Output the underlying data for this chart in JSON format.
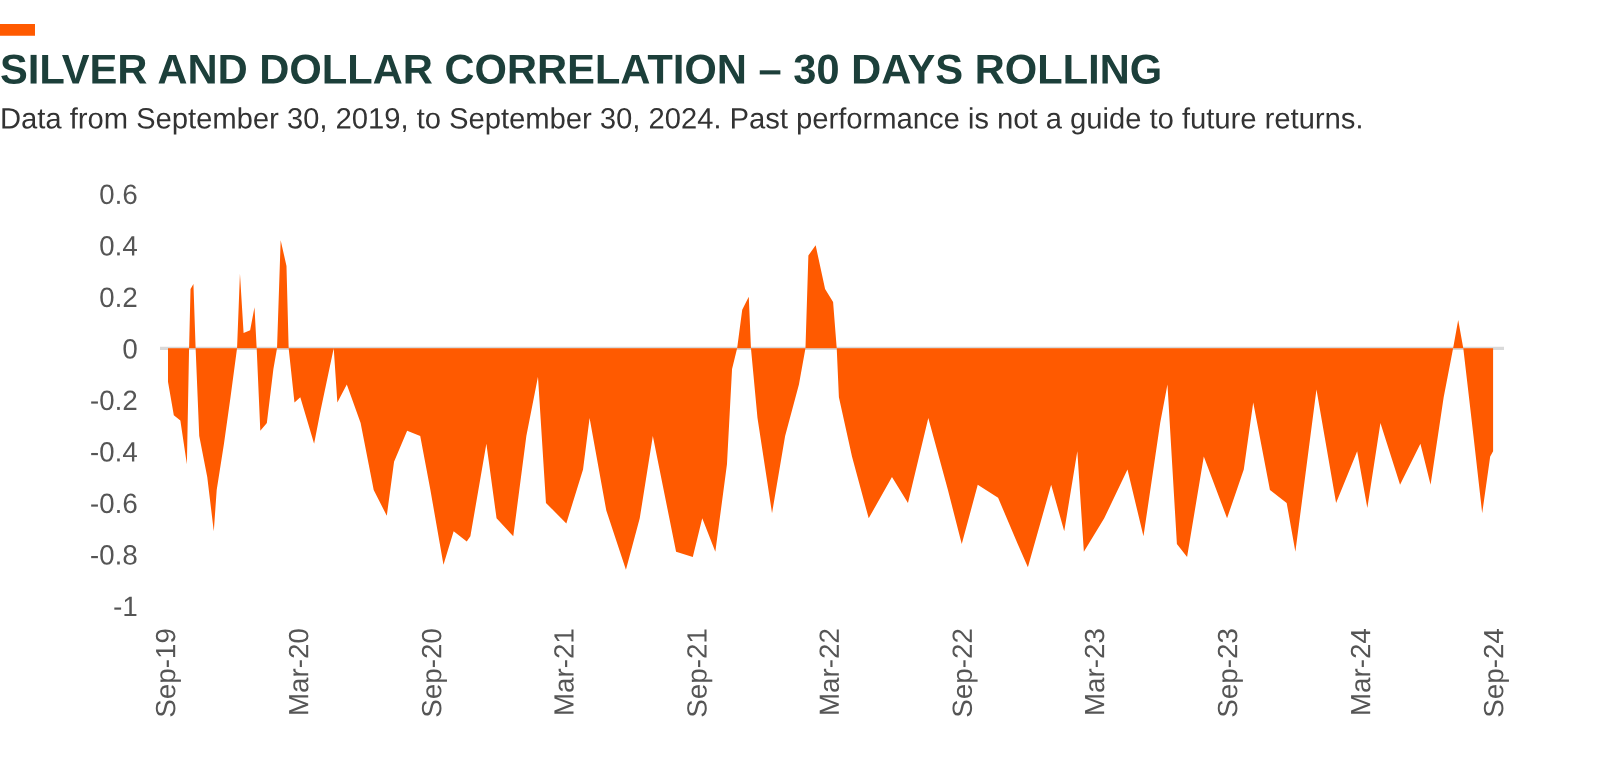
{
  "chart_data": {
    "type": "area",
    "title": "SILVER AND DOLLAR CORRELATION – 30 DAYS ROLLING",
    "annotations": [
      "Data from September 30, 2019, to September 30, 2024. Past performance is not a guide to future returns."
    ],
    "series": [
      {
        "color": "#ff5a00",
        "x": [
          "2019-09-30",
          "2019-10-08",
          "2019-10-17",
          "2019-10-26",
          "2019-10-29",
          "2019-10-31",
          "2019-11-04",
          "2019-11-07",
          "2019-11-12",
          "2019-11-23",
          "2019-12-02",
          "2019-12-06",
          "2019-12-16",
          "2019-12-25",
          "2020-01-03",
          "2020-01-07",
          "2020-01-12",
          "2020-01-21",
          "2020-01-27",
          "2020-01-30",
          "2020-02-04",
          "2020-02-13",
          "2020-02-22",
          "2020-02-27",
          "2020-03-03",
          "2020-03-11",
          "2020-03-14",
          "2020-03-22",
          "2020-03-30",
          "2020-04-18",
          "2020-04-27",
          "2020-05-15",
          "2020-05-20",
          "2020-06-02",
          "2020-06-21",
          "2020-07-09",
          "2020-07-27",
          "2020-08-06",
          "2020-08-24",
          "2020-09-11",
          "2020-09-25",
          "2020-10-13",
          "2020-10-27",
          "2020-11-14",
          "2020-11-19",
          "2020-12-11",
          "2020-12-25",
          "2021-01-17",
          "2021-02-04",
          "2021-02-20",
          "2021-03-03",
          "2021-03-31",
          "2021-04-23",
          "2021-05-02",
          "2021-05-25",
          "2021-06-21",
          "2021-07-10",
          "2021-07-28",
          "2021-08-29",
          "2021-09-21",
          "2021-10-04",
          "2021-10-22",
          "2021-11-07",
          "2021-11-14",
          "2021-11-21",
          "2021-11-28",
          "2021-12-07",
          "2021-12-10",
          "2021-12-19",
          "2022-01-08",
          "2022-01-26",
          "2022-02-14",
          "2022-02-23",
          "2022-02-27",
          "2022-03-09",
          "2022-03-22",
          "2022-04-02",
          "2022-04-07",
          "2022-04-10",
          "2022-04-28",
          "2022-05-21",
          "2022-06-22",
          "2022-07-14",
          "2022-08-11",
          "2022-09-07",
          "2022-09-26",
          "2022-10-18",
          "2022-11-15",
          "2022-12-12",
          "2022-12-26",
          "2023-01-27",
          "2023-02-14",
          "2023-03-04",
          "2023-03-13",
          "2023-04-10",
          "2023-05-12",
          "2023-06-03",
          "2023-06-26",
          "2023-07-06",
          "2023-07-19",
          "2023-08-02",
          "2023-08-25",
          "2023-09-26",
          "2023-10-19",
          "2023-11-01",
          "2023-11-24",
          "2023-12-17",
          "2023-12-29",
          "2024-01-27",
          "2024-02-23",
          "2024-03-23",
          "2024-04-06",
          "2024-04-24",
          "2024-05-21",
          "2024-06-18",
          "2024-07-02",
          "2024-07-20",
          "2024-08-02",
          "2024-08-09",
          "2024-08-16",
          "2024-08-30",
          "2024-09-11",
          "2024-09-22",
          "2024-09-26"
        ],
        "values": [
          -0.13,
          -0.26,
          -0.28,
          -0.45,
          0,
          0.23,
          0.25,
          0,
          -0.34,
          -0.5,
          -0.71,
          -0.55,
          -0.37,
          -0.19,
          0,
          0.29,
          0.06,
          0.07,
          0.16,
          0,
          -0.32,
          -0.29,
          -0.08,
          0,
          0.42,
          0.32,
          0,
          -0.21,
          -0.19,
          -0.37,
          -0.24,
          0,
          -0.21,
          -0.14,
          -0.29,
          -0.55,
          -0.65,
          -0.44,
          -0.32,
          -0.34,
          -0.55,
          -0.84,
          -0.71,
          -0.75,
          -0.73,
          -0.37,
          -0.66,
          -0.73,
          -0.34,
          -0.11,
          -0.6,
          -0.68,
          -0.47,
          -0.27,
          -0.63,
          -0.86,
          -0.66,
          -0.34,
          -0.79,
          -0.81,
          -0.66,
          -0.79,
          -0.45,
          -0.08,
          0,
          0.15,
          0.2,
          0,
          -0.27,
          -0.64,
          -0.34,
          -0.14,
          0,
          0.36,
          0.4,
          0.23,
          0.18,
          0,
          -0.19,
          -0.42,
          -0.66,
          -0.5,
          -0.6,
          -0.27,
          -0.55,
          -0.76,
          -0.53,
          -0.58,
          -0.76,
          -0.85,
          -0.53,
          -0.71,
          -0.4,
          -0.79,
          -0.66,
          -0.47,
          -0.73,
          -0.29,
          -0.14,
          -0.76,
          -0.81,
          -0.42,
          -0.66,
          -0.47,
          -0.21,
          -0.55,
          -0.6,
          -0.79,
          -0.16,
          -0.6,
          -0.4,
          -0.62,
          -0.29,
          -0.53,
          -0.37,
          -0.53,
          -0.19,
          0,
          0.11,
          0,
          -0.34,
          -0.64,
          -0.42,
          -0.4
        ]
      }
    ],
    "xlim": [
      "2019-09-19",
      "2024-10-11"
    ],
    "xticks": [
      {
        "value": "2019-09-30",
        "label": "Sep-19"
      },
      {
        "value": "2020-03-31",
        "label": "Mar-20"
      },
      {
        "value": "2020-09-30",
        "label": "Sep-20"
      },
      {
        "value": "2021-03-31",
        "label": "Mar-21"
      },
      {
        "value": "2021-09-30",
        "label": "Sep-21"
      },
      {
        "value": "2022-03-31",
        "label": "Mar-22"
      },
      {
        "value": "2022-09-30",
        "label": "Sep-22"
      },
      {
        "value": "2023-03-31",
        "label": "Mar-23"
      },
      {
        "value": "2023-09-30",
        "label": "Sep-23"
      },
      {
        "value": "2024-03-31",
        "label": "Mar-24"
      },
      {
        "value": "2024-09-30",
        "label": "Sep-24"
      }
    ],
    "ylim": [
      -1,
      0.6
    ],
    "yticks": [
      0.6,
      0.4,
      0.2,
      0,
      {
        "value": -0.2,
        "label": "-0.2"
      },
      {
        "value": -0.4,
        "label": "-0.4"
      },
      {
        "value": -0.6,
        "label": "-0.6"
      },
      {
        "value": -0.8,
        "label": "-0.8"
      },
      {
        "value": -1,
        "label": "-1"
      }
    ],
    "ref_lines": [
      {
        "axis": "y",
        "value": 0,
        "color": "#d9d9d9"
      }
    ],
    "grid": false,
    "legend": false
  }
}
